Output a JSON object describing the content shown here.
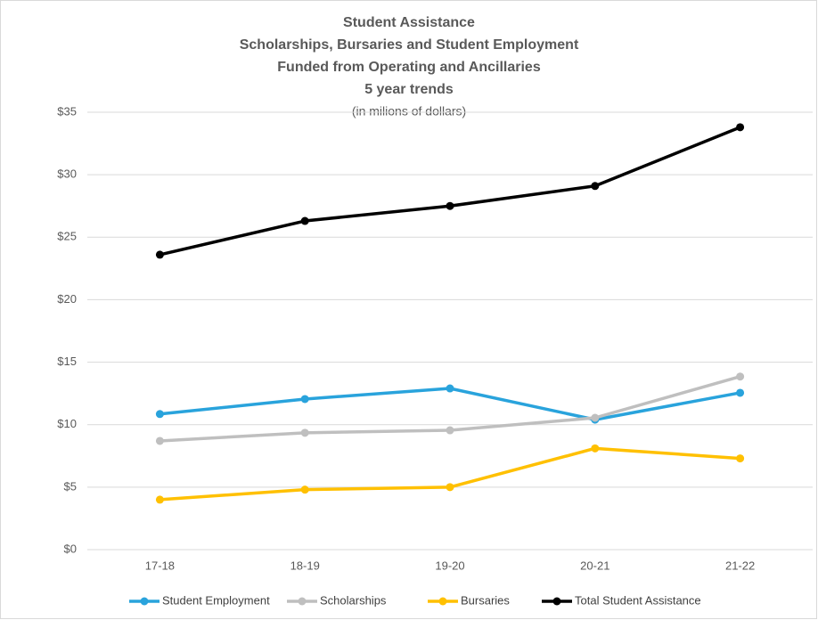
{
  "chart_data": {
    "type": "line",
    "title": "Student Assistance",
    "subtitle": [
      "Scholarships, Bursaries and Student Employment",
      "Funded from Operating and Ancillaries",
      "5 year trends"
    ],
    "note": "(in milions of dollars)",
    "categories": [
      "17-18",
      "18-19",
      "19-20",
      "20-21",
      "21-22"
    ],
    "series": [
      {
        "name": "Student Employment",
        "color": "#29a3dc",
        "values": [
          10.85,
          12.05,
          12.9,
          10.4,
          12.55
        ]
      },
      {
        "name": "Scholarships",
        "color": "#bfbfbf",
        "values": [
          8.7,
          9.35,
          9.55,
          10.55,
          13.85
        ]
      },
      {
        "name": "Bursaries",
        "color": "#ffc000",
        "values": [
          4.0,
          4.8,
          5.0,
          8.1,
          7.3
        ]
      },
      {
        "name": "Total Student Assistance",
        "color": "#000000",
        "values": [
          23.6,
          26.3,
          27.5,
          29.1,
          33.8
        ]
      }
    ],
    "ylim": [
      0,
      35
    ],
    "yticks": [
      {
        "value": 0,
        "label": "$0"
      },
      {
        "value": 5,
        "label": "$5"
      },
      {
        "value": 10,
        "label": "$10"
      },
      {
        "value": 15,
        "label": "$15"
      },
      {
        "value": 20,
        "label": "$20"
      },
      {
        "value": 25,
        "label": "$25"
      },
      {
        "value": 30,
        "label": "$30"
      },
      {
        "value": 35,
        "label": "$35"
      }
    ],
    "grid": true,
    "legend": "bottom"
  }
}
